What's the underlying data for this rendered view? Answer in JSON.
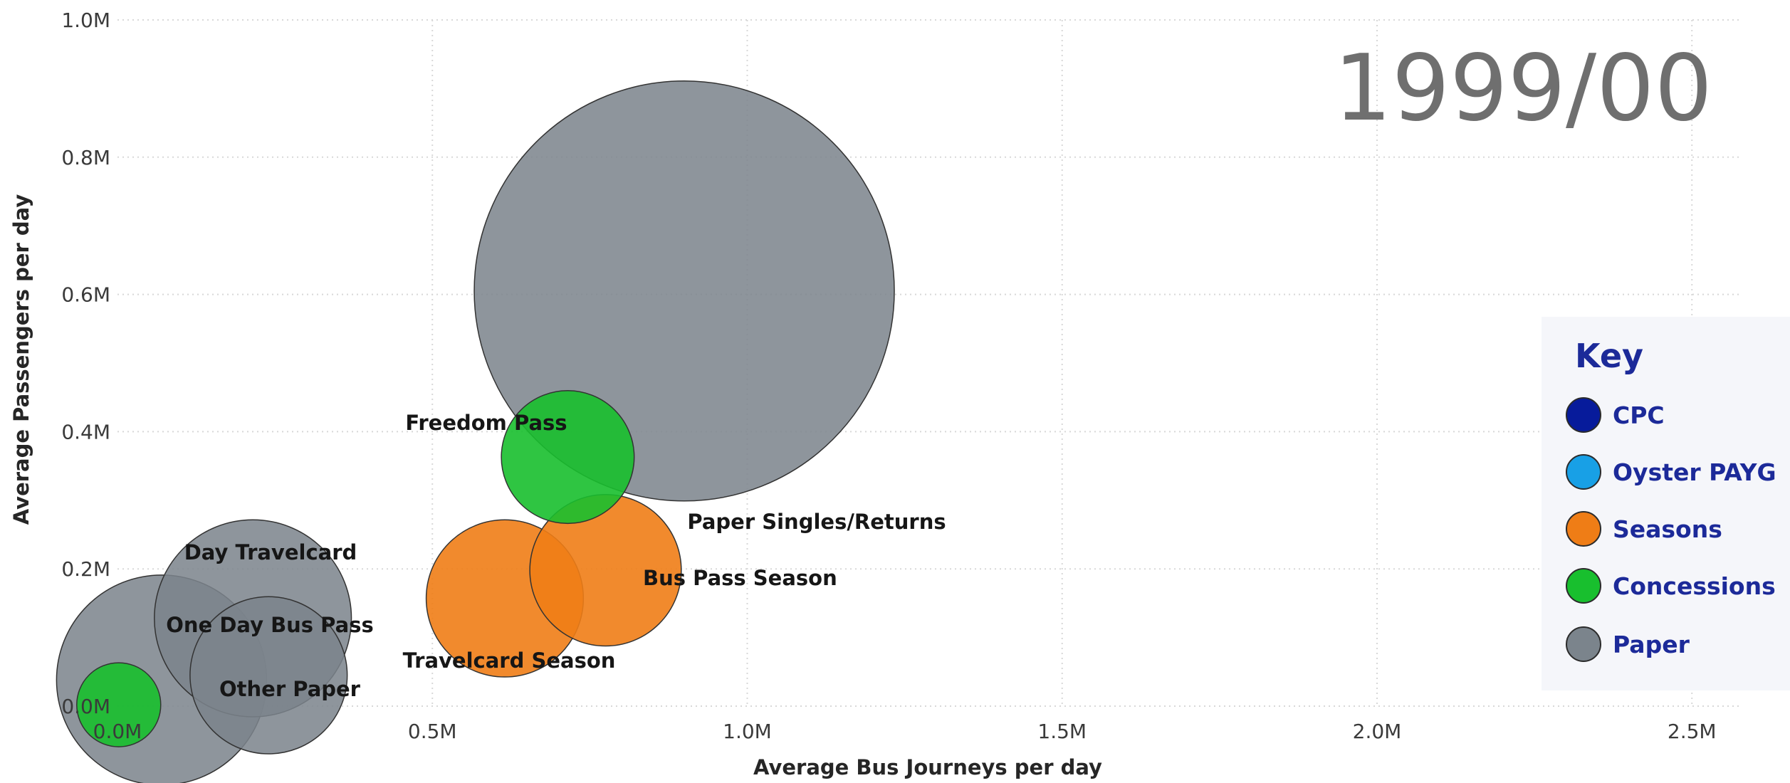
{
  "year_label": "1999/00",
  "chart_data": {
    "type": "scatter",
    "xlabel": "Average Bus Journeys per day",
    "ylabel": "Average Passengers per day",
    "xlim": [
      0,
      2580000
    ],
    "ylim": [
      0,
      1000000
    ],
    "xticks": [
      0,
      500000,
      1000000,
      1500000,
      2000000,
      2500000
    ],
    "yticks": [
      0,
      200000,
      400000,
      600000,
      800000,
      1000000
    ],
    "xtick_labels": [
      "0.0M",
      "0.5M",
      "1.0M",
      "1.5M",
      "2.0M",
      "2.5M"
    ],
    "ytick_labels": [
      "0.0M",
      "0.2M",
      "0.4M",
      "0.6M",
      "0.8M",
      "1.0M"
    ],
    "grid": true,
    "legend_position": "right",
    "points": [
      {
        "label": "",
        "category": "Paper",
        "x": 900000,
        "y": 605000,
        "size": 100
      },
      {
        "label": "Freedom Pass",
        "category": "Concessions",
        "x": 715000,
        "y": 363000,
        "size": 10
      },
      {
        "label": "Paper Singles/Returns",
        "category": "Seasons",
        "x": 775000,
        "y": 198000,
        "size": 13
      },
      {
        "label": "Travelcard Season",
        "category": "Seasons",
        "x": 615000,
        "y": 157000,
        "size": 14
      },
      {
        "label": "Day Travelcard",
        "category": "Paper",
        "x": 215000,
        "y": 128000,
        "size": 22
      },
      {
        "label": "One Day Bus Pass",
        "category": "Paper",
        "x": 70000,
        "y": 38000,
        "size": 25
      },
      {
        "label": "Other Paper",
        "category": "Paper",
        "x": 240000,
        "y": 45000,
        "size": 14
      },
      {
        "label": "",
        "category": "Concessions",
        "x": 2000,
        "y": 2000,
        "size": 4
      }
    ],
    "annotations": [
      {
        "text": "Freedom Pass"
      },
      {
        "text": "Paper Singles/Returns"
      },
      {
        "text": "Bus Pass Season"
      },
      {
        "text": "Travelcard Season"
      },
      {
        "text": "Day Travelcard"
      },
      {
        "text": "One Day Bus Pass"
      },
      {
        "text": "Other Paper"
      }
    ]
  },
  "key": {
    "title": "Key",
    "items": [
      {
        "label": "CPC",
        "color": "#071b9b"
      },
      {
        "label": "Oyster PAYG",
        "color": "#18a0e6"
      },
      {
        "label": "Seasons",
        "color": "#ef7d16"
      },
      {
        "label": "Concessions",
        "color": "#18bf2e"
      },
      {
        "label": "Paper",
        "color": "#7b848c"
      }
    ]
  },
  "colors": {
    "Paper": "#7b848c",
    "Seasons": "#ef7d16",
    "Concessions": "#18bf2e",
    "CPC": "#071b9b",
    "Oyster PAYG": "#18a0e6"
  }
}
